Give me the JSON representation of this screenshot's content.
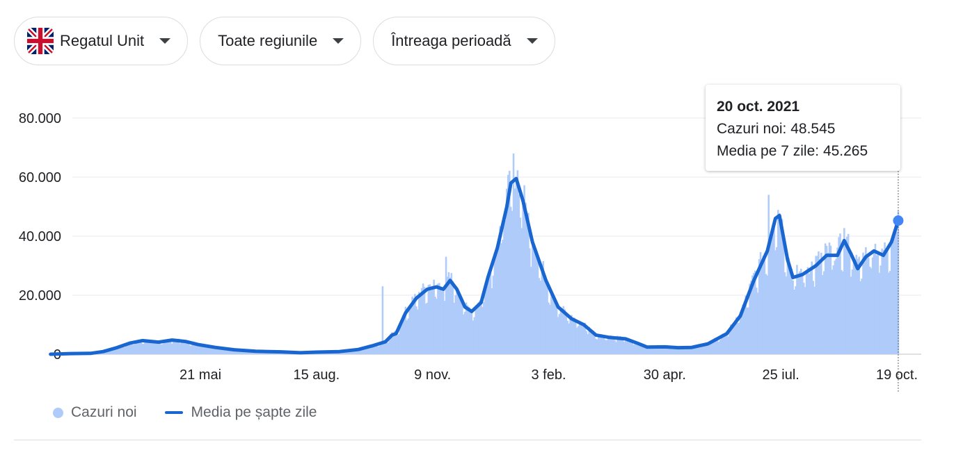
{
  "filters": {
    "country": {
      "label": "Regatul Unit",
      "icon": "uk-flag-icon"
    },
    "region": {
      "label": "Toate regiunile"
    },
    "period": {
      "label": "Întreaga perioadă"
    }
  },
  "tooltip": {
    "date": "20 oct. 2021",
    "cases_label": "Cazuri noi:",
    "cases_value": "48.545",
    "avg_label": "Media pe 7 zile:",
    "avg_value": "45.265"
  },
  "legend": {
    "bars_label": "Cazuri noi",
    "line_label": "Media pe șapte zile"
  },
  "colors": {
    "bar": "#aecbfa",
    "line": "#1a66d0",
    "marker": "#4285f4",
    "grid": "#e8eaed",
    "text": "#202124",
    "muted": "#5f6368"
  },
  "chart_data": {
    "type": "bar",
    "title": "",
    "xlabel": "",
    "ylabel": "",
    "ylim": [
      0,
      80000
    ],
    "y_ticks": [
      0,
      20000,
      40000,
      60000,
      80000
    ],
    "y_tick_labels": [
      "0",
      "20.000",
      "40.000",
      "60.000",
      "80.000"
    ],
    "x_ticks": [
      {
        "date": "2020-05-21",
        "label": "21 mai"
      },
      {
        "date": "2020-08-15",
        "label": "15 aug."
      },
      {
        "date": "2020-11-09",
        "label": "9 nov."
      },
      {
        "date": "2021-02-03",
        "label": "3 feb."
      },
      {
        "date": "2021-04-30",
        "label": "30 apr."
      },
      {
        "date": "2021-07-25",
        "label": "25 iul."
      },
      {
        "date": "2021-10-19",
        "label": "19 oct."
      }
    ],
    "x_range": [
      "2020-01-31",
      "2021-10-20"
    ],
    "grid": true,
    "legend_position": "bottom-left",
    "series": [
      {
        "name": "Media pe șapte zile",
        "type": "line",
        "points": [
          [
            "2020-01-31",
            0
          ],
          [
            "2020-02-15",
            200
          ],
          [
            "2020-03-01",
            300
          ],
          [
            "2020-03-10",
            900
          ],
          [
            "2020-03-20",
            2200
          ],
          [
            "2020-03-30",
            3800
          ],
          [
            "2020-04-08",
            4600
          ],
          [
            "2020-04-20",
            4100
          ],
          [
            "2020-04-30",
            4800
          ],
          [
            "2020-05-10",
            4300
          ],
          [
            "2020-05-20",
            3200
          ],
          [
            "2020-06-01",
            2300
          ],
          [
            "2020-06-15",
            1500
          ],
          [
            "2020-07-01",
            1000
          ],
          [
            "2020-07-20",
            800
          ],
          [
            "2020-08-03",
            500
          ],
          [
            "2020-08-15",
            700
          ],
          [
            "2020-09-01",
            900
          ],
          [
            "2020-09-15",
            1600
          ],
          [
            "2020-09-25",
            2800
          ],
          [
            "2020-10-05",
            4200
          ],
          [
            "2020-10-10",
            6500
          ],
          [
            "2020-10-13",
            7000
          ],
          [
            "2020-10-20",
            14000
          ],
          [
            "2020-10-28",
            19000
          ],
          [
            "2020-11-05",
            22000
          ],
          [
            "2020-11-12",
            22800
          ],
          [
            "2020-11-17",
            22000
          ],
          [
            "2020-11-22",
            25000
          ],
          [
            "2020-11-27",
            22000
          ],
          [
            "2020-12-03",
            16000
          ],
          [
            "2020-12-08",
            14500
          ],
          [
            "2020-12-15",
            17500
          ],
          [
            "2020-12-20",
            26000
          ],
          [
            "2020-12-27",
            36000
          ],
          [
            "2021-01-03",
            50000
          ],
          [
            "2021-01-06",
            58000
          ],
          [
            "2021-01-10",
            59500
          ],
          [
            "2021-01-15",
            52000
          ],
          [
            "2021-01-22",
            38000
          ],
          [
            "2021-02-01",
            25000
          ],
          [
            "2021-02-10",
            16000
          ],
          [
            "2021-02-20",
            12000
          ],
          [
            "2021-03-01",
            10000
          ],
          [
            "2021-03-10",
            6500
          ],
          [
            "2021-03-20",
            5700
          ],
          [
            "2021-04-01",
            5200
          ],
          [
            "2021-04-10",
            3700
          ],
          [
            "2021-04-17",
            2400
          ],
          [
            "2021-04-30",
            2500
          ],
          [
            "2021-05-10",
            2200
          ],
          [
            "2021-05-20",
            2300
          ],
          [
            "2021-06-01",
            3500
          ],
          [
            "2021-06-15",
            7000
          ],
          [
            "2021-06-25",
            13000
          ],
          [
            "2021-07-05",
            25000
          ],
          [
            "2021-07-15",
            35000
          ],
          [
            "2021-07-21",
            46000
          ],
          [
            "2021-07-24",
            47000
          ],
          [
            "2021-07-30",
            32000
          ],
          [
            "2021-08-03",
            26000
          ],
          [
            "2021-08-10",
            27000
          ],
          [
            "2021-08-20",
            30000
          ],
          [
            "2021-08-28",
            33500
          ],
          [
            "2021-09-05",
            33500
          ],
          [
            "2021-09-10",
            38500
          ],
          [
            "2021-09-15",
            34000
          ],
          [
            "2021-09-20",
            29000
          ],
          [
            "2021-09-26",
            33000
          ],
          [
            "2021-10-02",
            35000
          ],
          [
            "2021-10-09",
            33500
          ],
          [
            "2021-10-15",
            38000
          ],
          [
            "2021-10-20",
            45265
          ]
        ]
      },
      {
        "name": "Cazuri noi",
        "type": "bar",
        "note_peaks": [
          [
            "2020-10-03",
            23000
          ],
          [
            "2020-11-19",
            33000
          ],
          [
            "2021-01-08",
            68000
          ],
          [
            "2021-07-16",
            54000
          ],
          [
            "2021-10-20",
            48545
          ]
        ]
      }
    ],
    "highlight": {
      "date": "2021-10-20",
      "cases": 48545,
      "average": 45265
    }
  }
}
